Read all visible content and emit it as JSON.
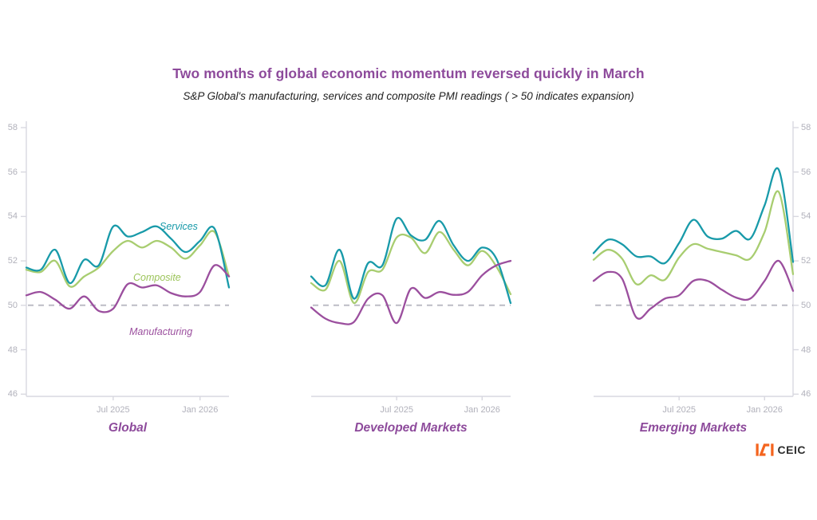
{
  "header": {
    "title": "Two months of global economic momentum reversed quickly in March",
    "subtitle": "S&P Global's manufacturing, services and composite PMI readings ( > 50 indicates expansion)"
  },
  "logo": {
    "mark": "isi-mark",
    "text": "CEIC",
    "mark_color": "#f4641e",
    "text_color": "#2e2e2e"
  },
  "colors": {
    "services": "#189aa9",
    "composite": "#a8cd70",
    "manufacturing": "#9b4f9e",
    "heading_purple": "#8d4a9b",
    "axis_label": "#b1b1bb",
    "axis_line": "#d8d8e0",
    "dashed_baseline": "#bcbcc6"
  },
  "chart_data": [
    {
      "type": "line",
      "title": "Global",
      "months": [
        "Jan 2025",
        "Feb 2025",
        "Mar 2025",
        "Apr 2025",
        "May 2025",
        "Jun 2025",
        "Jul 2025",
        "Aug 2025",
        "Sep 2025",
        "Oct 2025",
        "Nov 2025",
        "Dec 2025",
        "Jan 2026",
        "Feb 2026",
        "Mar 2026"
      ],
      "x_ticks": [
        {
          "label": "Jul 2025",
          "month_index": 6
        },
        {
          "label": "Jan 2026",
          "month_index": 12
        }
      ],
      "y_ticks": [
        58,
        56,
        54,
        52,
        50,
        48,
        46
      ],
      "ylim": [
        46,
        58
      ],
      "baseline": 50,
      "y_axis_side": "left",
      "series": [
        {
          "name": "Services",
          "color": "#189aa9",
          "values": [
            51.7,
            51.6,
            52.5,
            51.0,
            52.05,
            51.8,
            53.55,
            53.1,
            53.3,
            53.55,
            53.0,
            52.4,
            52.9,
            53.45,
            50.8
          ]
        },
        {
          "name": "Composite",
          "color": "#a8cd70",
          "values": [
            51.6,
            51.5,
            52.0,
            50.85,
            51.3,
            51.7,
            52.45,
            52.9,
            52.6,
            52.9,
            52.6,
            52.1,
            52.7,
            53.3,
            51.3
          ]
        },
        {
          "name": "Manufacturing",
          "color": "#9b4f9e",
          "values": [
            50.45,
            50.6,
            50.25,
            49.85,
            50.4,
            49.75,
            49.85,
            50.95,
            50.8,
            50.9,
            50.55,
            50.4,
            50.6,
            51.8,
            51.3
          ]
        }
      ]
    },
    {
      "type": "line",
      "title": "Developed Markets",
      "months": [
        "Jan 2025",
        "Feb 2025",
        "Mar 2025",
        "Apr 2025",
        "May 2025",
        "Jun 2025",
        "Jul 2025",
        "Aug 2025",
        "Sep 2025",
        "Oct 2025",
        "Nov 2025",
        "Dec 2025",
        "Jan 2026",
        "Feb 2026",
        "Mar 2026"
      ],
      "x_ticks": [
        {
          "label": "Jul 2025",
          "month_index": 6
        },
        {
          "label": "Jan 2026",
          "month_index": 12
        }
      ],
      "y_ticks": [
        58,
        56,
        54,
        52,
        50,
        48,
        46
      ],
      "ylim": [
        46,
        58
      ],
      "baseline": 50,
      "y_axis_side": "none",
      "series": [
        {
          "name": "Services",
          "color": "#189aa9",
          "values": [
            51.3,
            50.9,
            52.5,
            50.3,
            51.9,
            51.8,
            53.9,
            53.15,
            52.95,
            53.8,
            52.7,
            52.0,
            52.6,
            52.1,
            50.1
          ]
        },
        {
          "name": "Composite",
          "color": "#a8cd70",
          "values": [
            51.0,
            50.7,
            52.0,
            50.1,
            51.5,
            51.6,
            53.05,
            53.05,
            52.35,
            53.3,
            52.5,
            51.8,
            52.45,
            51.75,
            50.5
          ]
        },
        {
          "name": "Manufacturing",
          "color": "#9b4f9e",
          "values": [
            49.9,
            49.4,
            49.2,
            49.25,
            50.3,
            50.45,
            49.2,
            50.75,
            50.33,
            50.6,
            50.47,
            50.6,
            51.35,
            51.8,
            52.0
          ]
        }
      ]
    },
    {
      "type": "line",
      "title": "Emerging Markets",
      "months": [
        "Jan 2025",
        "Feb 2025",
        "Mar 2025",
        "Apr 2025",
        "May 2025",
        "Jun 2025",
        "Jul 2025",
        "Aug 2025",
        "Sep 2025",
        "Oct 2025",
        "Nov 2025",
        "Dec 2025",
        "Jan 2026",
        "Feb 2026",
        "Mar 2026"
      ],
      "x_ticks": [
        {
          "label": "Jul 2025",
          "month_index": 6
        },
        {
          "label": "Jan 2026",
          "month_index": 12
        }
      ],
      "y_ticks": [
        58,
        56,
        54,
        52,
        50,
        48,
        46
      ],
      "ylim": [
        46,
        58
      ],
      "baseline": 50,
      "y_axis_side": "right",
      "series": [
        {
          "name": "Services",
          "color": "#189aa9",
          "values": [
            52.35,
            52.95,
            52.75,
            52.2,
            52.2,
            51.9,
            52.8,
            53.85,
            53.1,
            53.0,
            53.35,
            53.0,
            54.5,
            56.1,
            51.95
          ]
        },
        {
          "name": "Composite",
          "color": "#a8cd70",
          "values": [
            52.05,
            52.5,
            52.1,
            50.95,
            51.35,
            51.15,
            52.15,
            52.75,
            52.55,
            52.4,
            52.25,
            52.1,
            53.3,
            55.1,
            51.4
          ]
        },
        {
          "name": "Manufacturing",
          "color": "#9b4f9e",
          "values": [
            51.1,
            51.5,
            51.2,
            49.45,
            49.85,
            50.3,
            50.45,
            51.1,
            51.1,
            50.7,
            50.35,
            50.3,
            51.1,
            52.0,
            50.65
          ]
        }
      ]
    }
  ]
}
